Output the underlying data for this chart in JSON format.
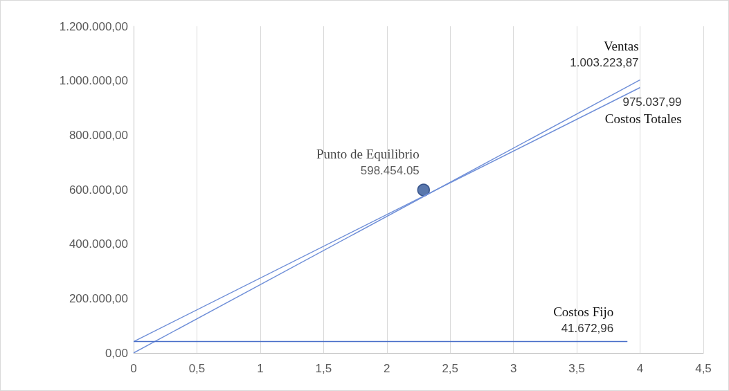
{
  "chart_data": {
    "type": "line",
    "xlim": [
      0,
      4.5
    ],
    "xticks": [
      0,
      {
        "value": 0.5,
        "label": "0,5"
      },
      1,
      {
        "value": 1.5,
        "label": "1,5"
      },
      2,
      {
        "value": 2.5,
        "label": "2,5"
      },
      3,
      {
        "value": 3.5,
        "label": "3,5"
      },
      4,
      {
        "value": 4.5,
        "label": "4,5"
      }
    ],
    "ylim": [
      0,
      1200000
    ],
    "yticks": [
      {
        "value": 0,
        "label": "0,00"
      },
      {
        "value": 200000,
        "label": "200.000,00"
      },
      {
        "value": 400000,
        "label": "400.000,00"
      },
      {
        "value": 600000,
        "label": "600.000,00"
      },
      {
        "value": 800000,
        "label": "800.000,00"
      },
      {
        "value": 1000000,
        "label": "1.000.000,00"
      },
      {
        "value": 1200000,
        "label": "1.200.000,00"
      }
    ],
    "grid": "x",
    "line_style": "solid",
    "series": [
      {
        "name": "Ventas",
        "color": "#6f8fd8",
        "x": [
          0,
          4
        ],
        "values": [
          0,
          1003223.87
        ],
        "value_labels": [
          null,
          "1.003.223,87"
        ]
      },
      {
        "name": "Costos Totales",
        "color": "#6f8fd8",
        "x": [
          0,
          4
        ],
        "values": [
          41672.96,
          975037.99
        ],
        "value_labels": [
          null,
          "975.037,99"
        ]
      },
      {
        "name": "Costos Fijo",
        "color": "#4a6fc9",
        "x": [
          0,
          3.9
        ],
        "values": [
          41672.96,
          41672.96
        ],
        "value_labels": [
          null,
          "41.672,96"
        ]
      },
      {
        "name": "Punto de Equilibrio",
        "type": "scatter",
        "color": "#2f5597",
        "x": [
          2.29
        ],
        "values": [
          598454.05
        ],
        "value_labels": [
          "598.454.05"
        ]
      }
    ]
  }
}
